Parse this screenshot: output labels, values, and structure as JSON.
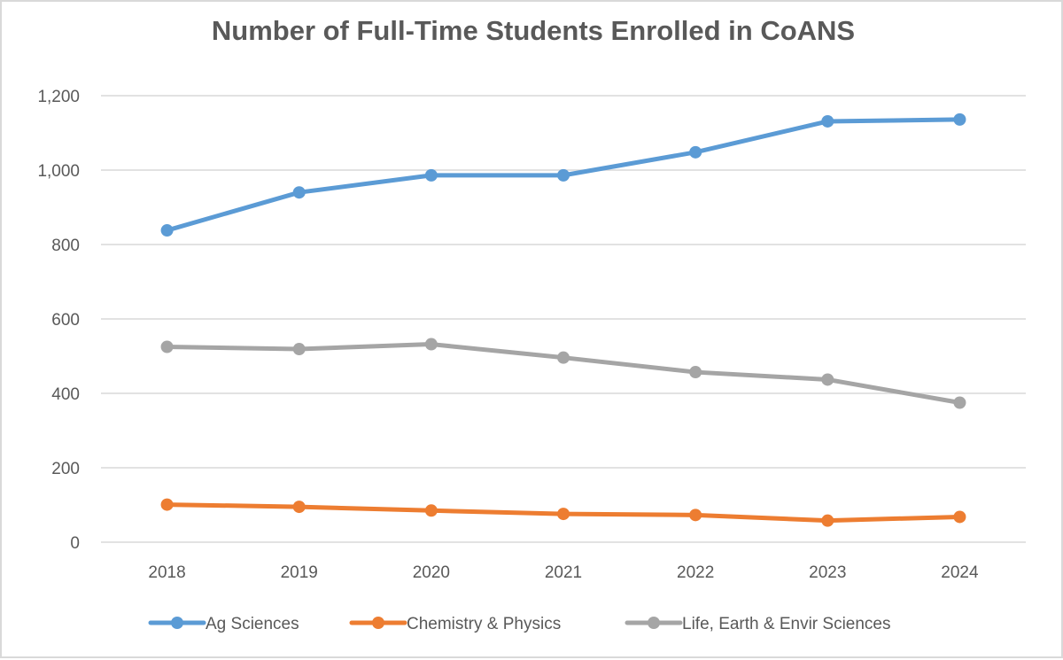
{
  "chart_data": {
    "type": "line",
    "title": "Number of Full-Time Students Enrolled in CoANS",
    "xlabel": "",
    "ylabel": "",
    "categories": [
      "2018",
      "2019",
      "2020",
      "2021",
      "2022",
      "2023",
      "2024"
    ],
    "ylim": [
      0,
      1200
    ],
    "yticks": [
      0,
      200,
      400,
      600,
      800,
      1000,
      1200
    ],
    "ytick_labels": [
      "0",
      "200",
      "400",
      "600",
      "800",
      "1,000",
      "1,200"
    ],
    "grid": true,
    "legend_position": "bottom",
    "series": [
      {
        "name": "Ag Sciences",
        "color": "#5b9bd5",
        "values": [
          838,
          940,
          986,
          986,
          1048,
          1131,
          1136
        ]
      },
      {
        "name": "Chemistry & Physics",
        "color": "#ed7d31",
        "values": [
          101,
          95,
          85,
          76,
          73,
          58,
          68
        ]
      },
      {
        "name": "Life, Earth & Envir Sciences",
        "color": "#a5a5a5",
        "values": [
          525,
          519,
          532,
          496,
          457,
          437,
          375
        ]
      }
    ]
  }
}
